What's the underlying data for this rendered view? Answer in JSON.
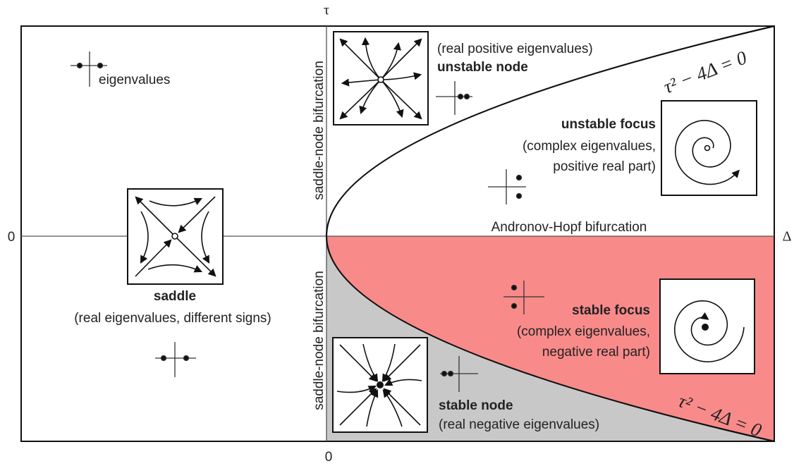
{
  "axes": {
    "y_label": "τ",
    "x_label": "Δ",
    "origin_left": "0",
    "origin_bottom": "0"
  },
  "legend_label": "eigenvalues",
  "bifurcations": {
    "saddle_node_upper": "saddle-node bifurcation",
    "saddle_node_lower": "saddle-node bifurcation",
    "hopf": "Andronov-Hopf bifurcation",
    "curve_upper": "τ² − 4Δ = 0",
    "curve_lower": "τ² − 4Δ = 0"
  },
  "regions": {
    "unstable_node": {
      "note": "(real positive eigenvalues)",
      "title": "unstable node"
    },
    "unstable_focus": {
      "title": "unstable focus",
      "lines": [
        "(complex eigenvalues,",
        "positive real part)"
      ]
    },
    "saddle": {
      "title": "saddle",
      "note": "(real eigenvalues, different signs)"
    },
    "stable_focus": {
      "title": "stable focus",
      "lines": [
        "(complex eigenvalues,",
        "negative real part)"
      ]
    },
    "stable_node": {
      "title": "stable node",
      "note": "(real negative eigenvalues)"
    }
  }
}
